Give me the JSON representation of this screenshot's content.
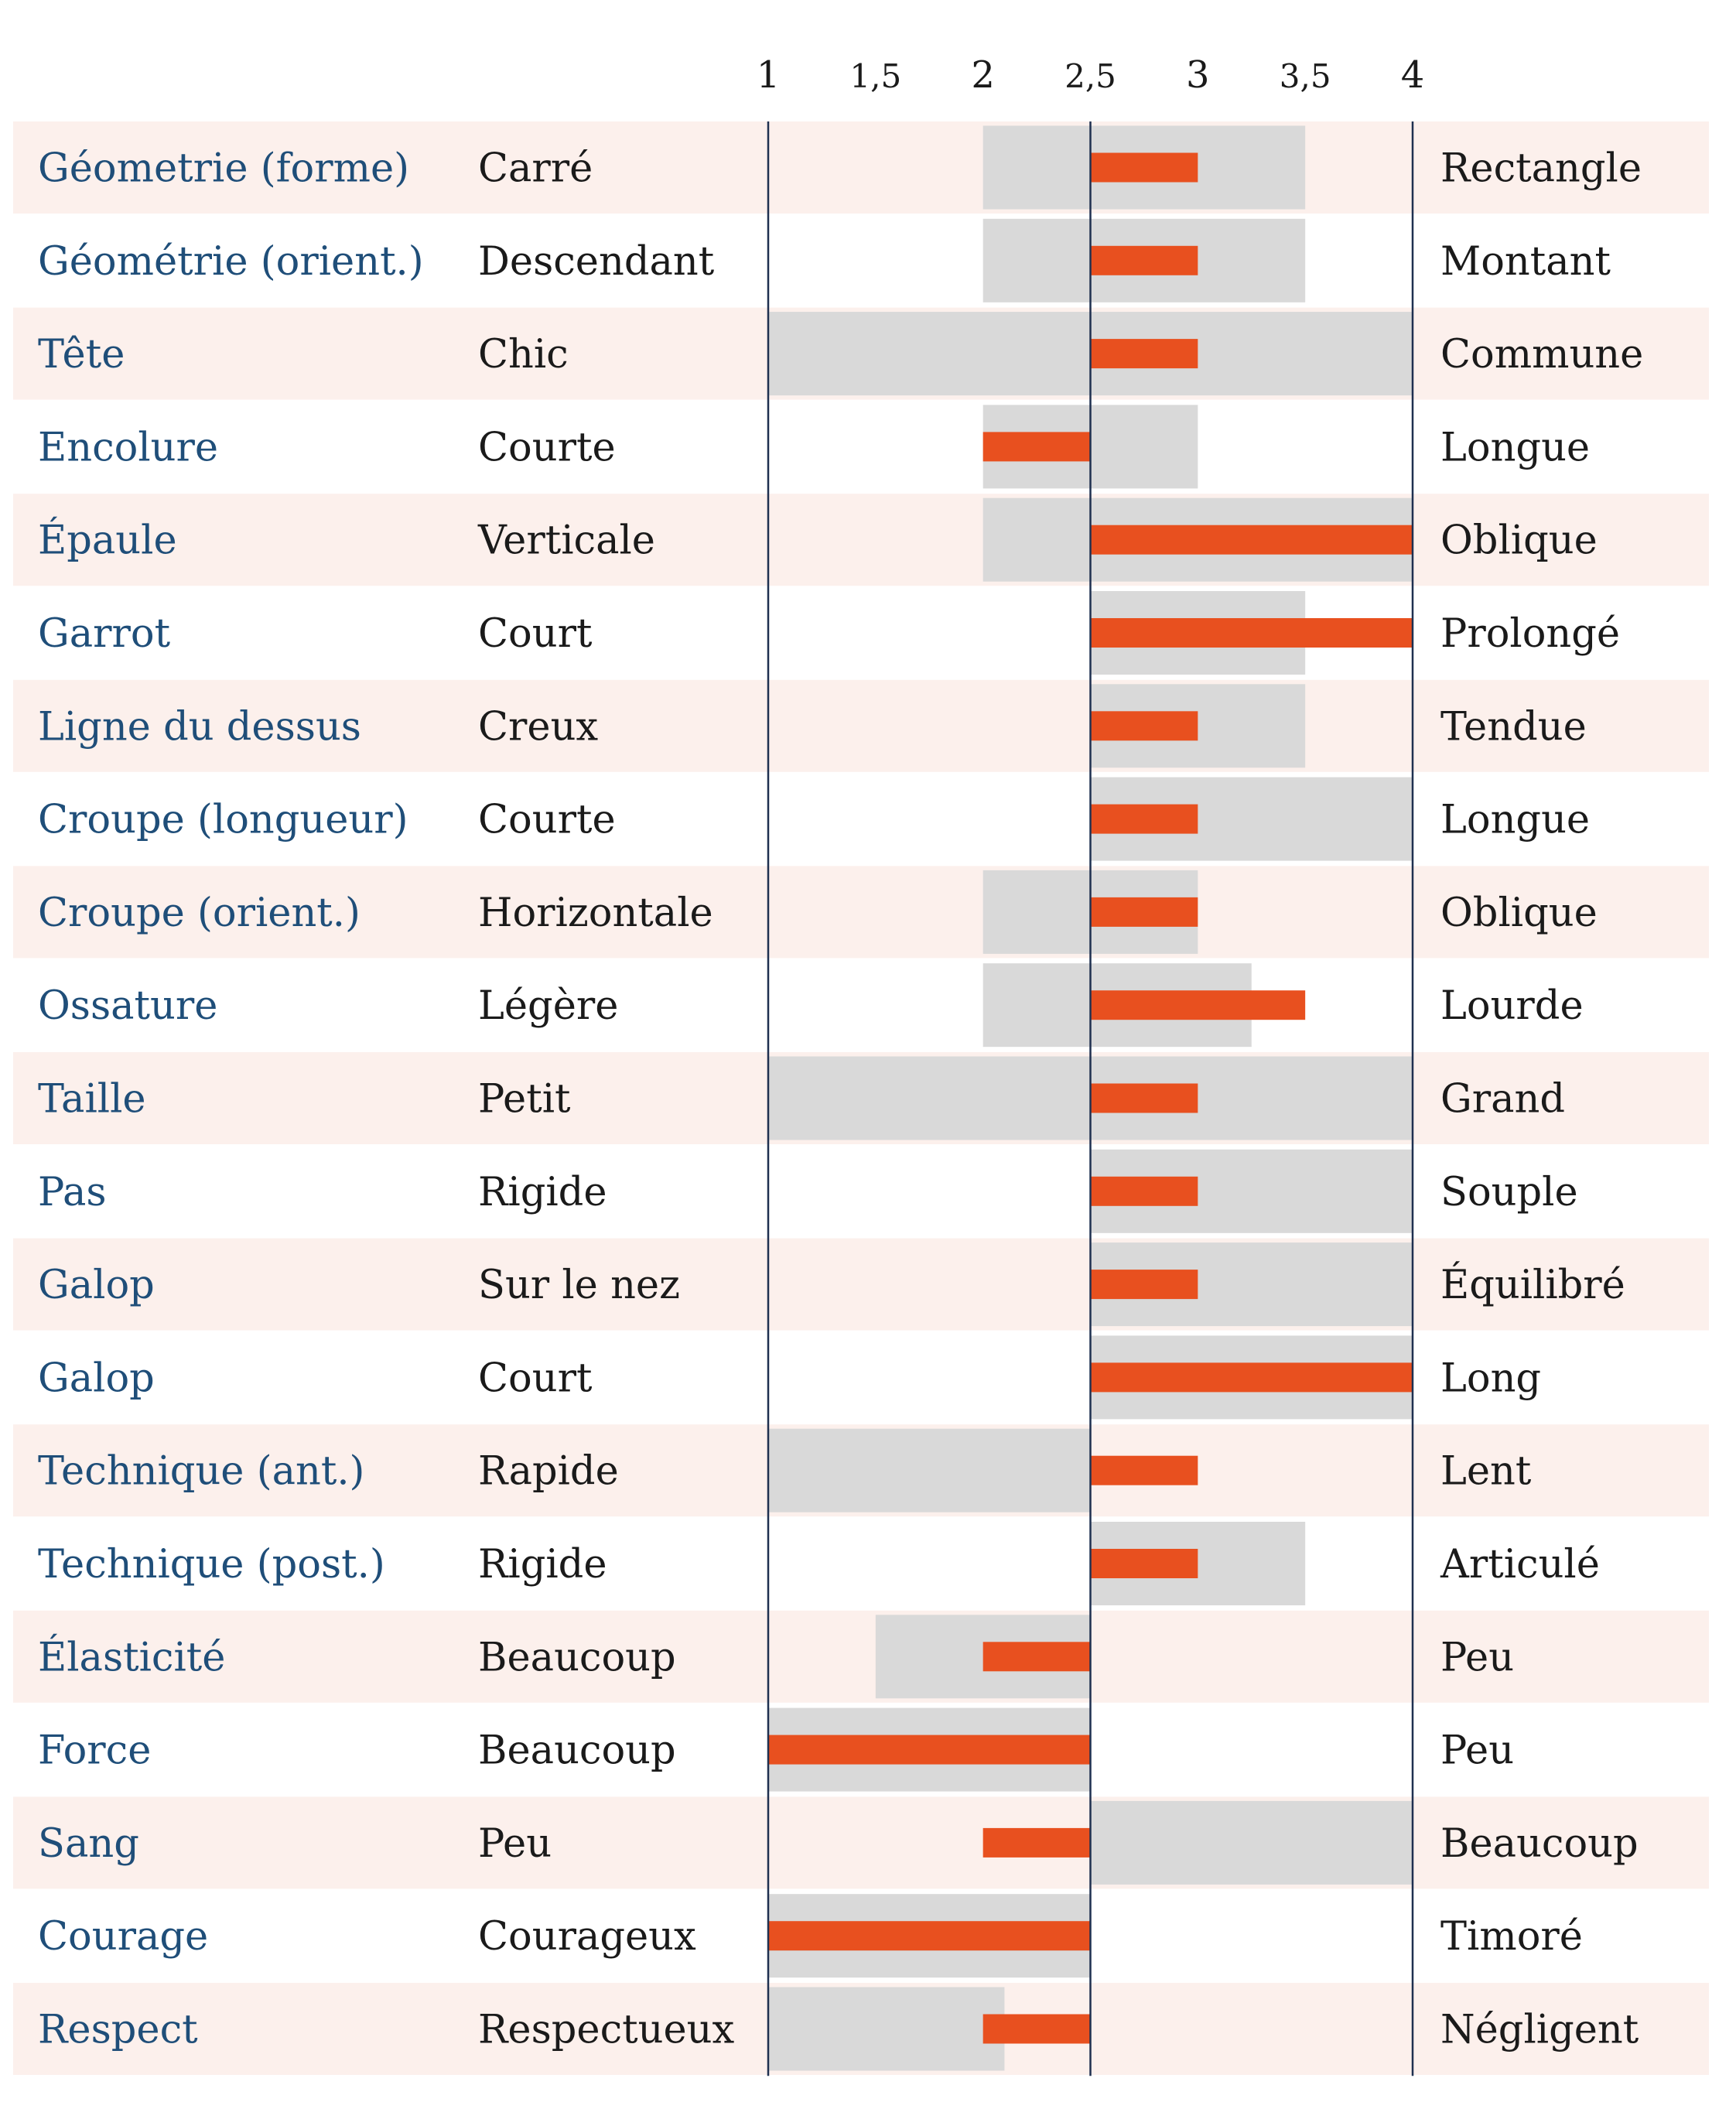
{
  "chart_data": {
    "type": "bar",
    "title": "",
    "xlabel": "",
    "ylabel": "",
    "xlim": [
      1,
      4
    ],
    "midpoint": 2.5,
    "axis_ticks": [
      "1",
      "1,5",
      "2",
      "2,5",
      "3",
      "3,5",
      "4"
    ],
    "colors": {
      "label": "#1f4e79",
      "text": "#1a1a1a",
      "stripe": "#fcf0ec",
      "range": "#d9d9d9",
      "bar": "#e8501f",
      "axis": "#1f3050"
    },
    "rows": [
      {
        "label": "Géometrie (forme)",
        "left": "Carré",
        "right": "Rectangle",
        "range": [
          2,
          3.5
        ],
        "value": 3
      },
      {
        "label": "Géométrie (orient.)",
        "left": "Descendant",
        "right": "Montant",
        "range": [
          2,
          3.5
        ],
        "value": 3
      },
      {
        "label": "Tête",
        "left": "Chic",
        "right": "Commune",
        "range": [
          1,
          4
        ],
        "value": 3
      },
      {
        "label": "Encolure",
        "left": "Courte",
        "right": "Longue",
        "range": [
          2,
          3
        ],
        "value": 2
      },
      {
        "label": "Épaule",
        "left": "Verticale",
        "right": "Oblique",
        "range": [
          2,
          4
        ],
        "value": 4
      },
      {
        "label": "Garrot",
        "left": "Court",
        "right": "Prolongé",
        "range": [
          2.5,
          3.5
        ],
        "value": 4
      },
      {
        "label": "Ligne du dessus",
        "left": "Creux",
        "right": "Tendue",
        "range": [
          2.5,
          3.5
        ],
        "value": 3
      },
      {
        "label": "Croupe (longueur)",
        "left": "Courte",
        "right": "Longue",
        "range": [
          2.5,
          4
        ],
        "value": 3
      },
      {
        "label": "Croupe (orient.)",
        "left": "Horizontale",
        "right": "Oblique",
        "range": [
          2,
          3
        ],
        "value": 3
      },
      {
        "label": "Ossature",
        "left": "Légère",
        "right": "Lourde",
        "range": [
          2,
          3.25
        ],
        "value": 3.5
      },
      {
        "label": "Taille",
        "left": "Petit",
        "right": "Grand",
        "range": [
          1,
          4
        ],
        "value": 3
      },
      {
        "label": "Pas",
        "left": "Rigide",
        "right": "Souple",
        "range": [
          2.5,
          4
        ],
        "value": 3
      },
      {
        "label": "Galop",
        "left": "Sur le nez",
        "right": "Équilibré",
        "range": [
          2.5,
          4
        ],
        "value": 3
      },
      {
        "label": "Galop",
        "left": "Court",
        "right": "Long",
        "range": [
          2.5,
          4
        ],
        "value": 4
      },
      {
        "label": "Technique (ant.)",
        "left": "Rapide",
        "right": "Lent",
        "range": [
          1,
          2.5
        ],
        "value": 3
      },
      {
        "label": "Technique (post.)",
        "left": "Rigide",
        "right": "Articulé",
        "range": [
          2.5,
          3.5
        ],
        "value": 3
      },
      {
        "label": "Élasticité",
        "left": "Beaucoup",
        "right": "Peu",
        "range": [
          1.5,
          2.5
        ],
        "value": 2
      },
      {
        "label": "Force",
        "left": "Beaucoup",
        "right": "Peu",
        "range": [
          1,
          2.5
        ],
        "value": 1
      },
      {
        "label": "Sang",
        "left": "Peu",
        "right": "Beaucoup",
        "range": [
          2.5,
          4
        ],
        "value": 2
      },
      {
        "label": "Courage",
        "left": "Courageux",
        "right": "Timoré",
        "range": [
          1,
          2.5
        ],
        "value": 1
      },
      {
        "label": "Respect",
        "left": "Respectueux",
        "right": "Négligent",
        "range": [
          1,
          2.1
        ],
        "value": 2
      }
    ]
  }
}
